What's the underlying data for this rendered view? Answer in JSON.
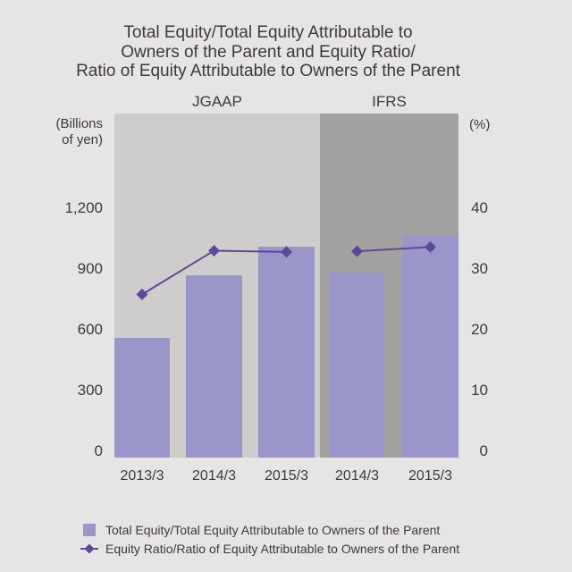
{
  "page": {
    "background": "#e6e5e4",
    "text_color": "#3e3a39"
  },
  "title": {
    "line1": "Total Equity/Total Equity Attributable to",
    "line2": "Owners of the Parent and Equity Ratio/",
    "line3": "Ratio of Equity Attributable to Owners of the Parent"
  },
  "axes": {
    "left": {
      "unit_line1": "(Billions",
      "unit_line2": "of yen)",
      "ylim": [
        0,
        1700
      ],
      "ticks": [
        {
          "value": 0,
          "label": "0"
        },
        {
          "value": 300,
          "label": "300"
        },
        {
          "value": 600,
          "label": "600"
        },
        {
          "value": 900,
          "label": "900"
        },
        {
          "value": 1200,
          "label": "1,200"
        }
      ]
    },
    "right": {
      "unit": "(%)",
      "ylim": [
        0,
        56.7
      ],
      "ticks": [
        {
          "value": 0,
          "label": "0"
        },
        {
          "value": 10,
          "label": "10"
        },
        {
          "value": 20,
          "label": "20"
        },
        {
          "value": 30,
          "label": "30"
        },
        {
          "value": 40,
          "label": "40"
        }
      ]
    }
  },
  "chart_data": {
    "type": "bar+line combo (dual axis)",
    "bar_series": "Total Equity/Total Equity Attributable to Owners of the Parent (billions of yen, left axis)",
    "line_series": "Equity Ratio/Ratio of Equity Attributable to Owners of the Parent (%, right axis)",
    "bar_color": "#9b96c9",
    "line_color": "#5f4899",
    "sections": [
      {
        "label": "JGAAP",
        "background": "#cecdcc",
        "points": [
          {
            "category": "2013/3",
            "bar": 590,
            "ratio": 26.9
          },
          {
            "category": "2014/3",
            "bar": 900,
            "ratio": 34.1
          },
          {
            "category": "2015/3",
            "bar": 1040,
            "ratio": 33.9
          }
        ]
      },
      {
        "label": "IFRS",
        "background": "#a3a2a1",
        "points": [
          {
            "category": "2014/3",
            "bar": 915,
            "ratio": 34.0
          },
          {
            "category": "2015/3",
            "bar": 1095,
            "ratio": 34.7
          }
        ]
      }
    ],
    "grid": "off",
    "legend_position": "bottom-left"
  },
  "legend": {
    "items": [
      {
        "marker": "square",
        "label": "Total Equity/Total Equity Attributable to Owners of the Parent"
      },
      {
        "marker": "diamond-line",
        "label": "Equity Ratio/Ratio of Equity Attributable to Owners of the Parent"
      }
    ]
  }
}
